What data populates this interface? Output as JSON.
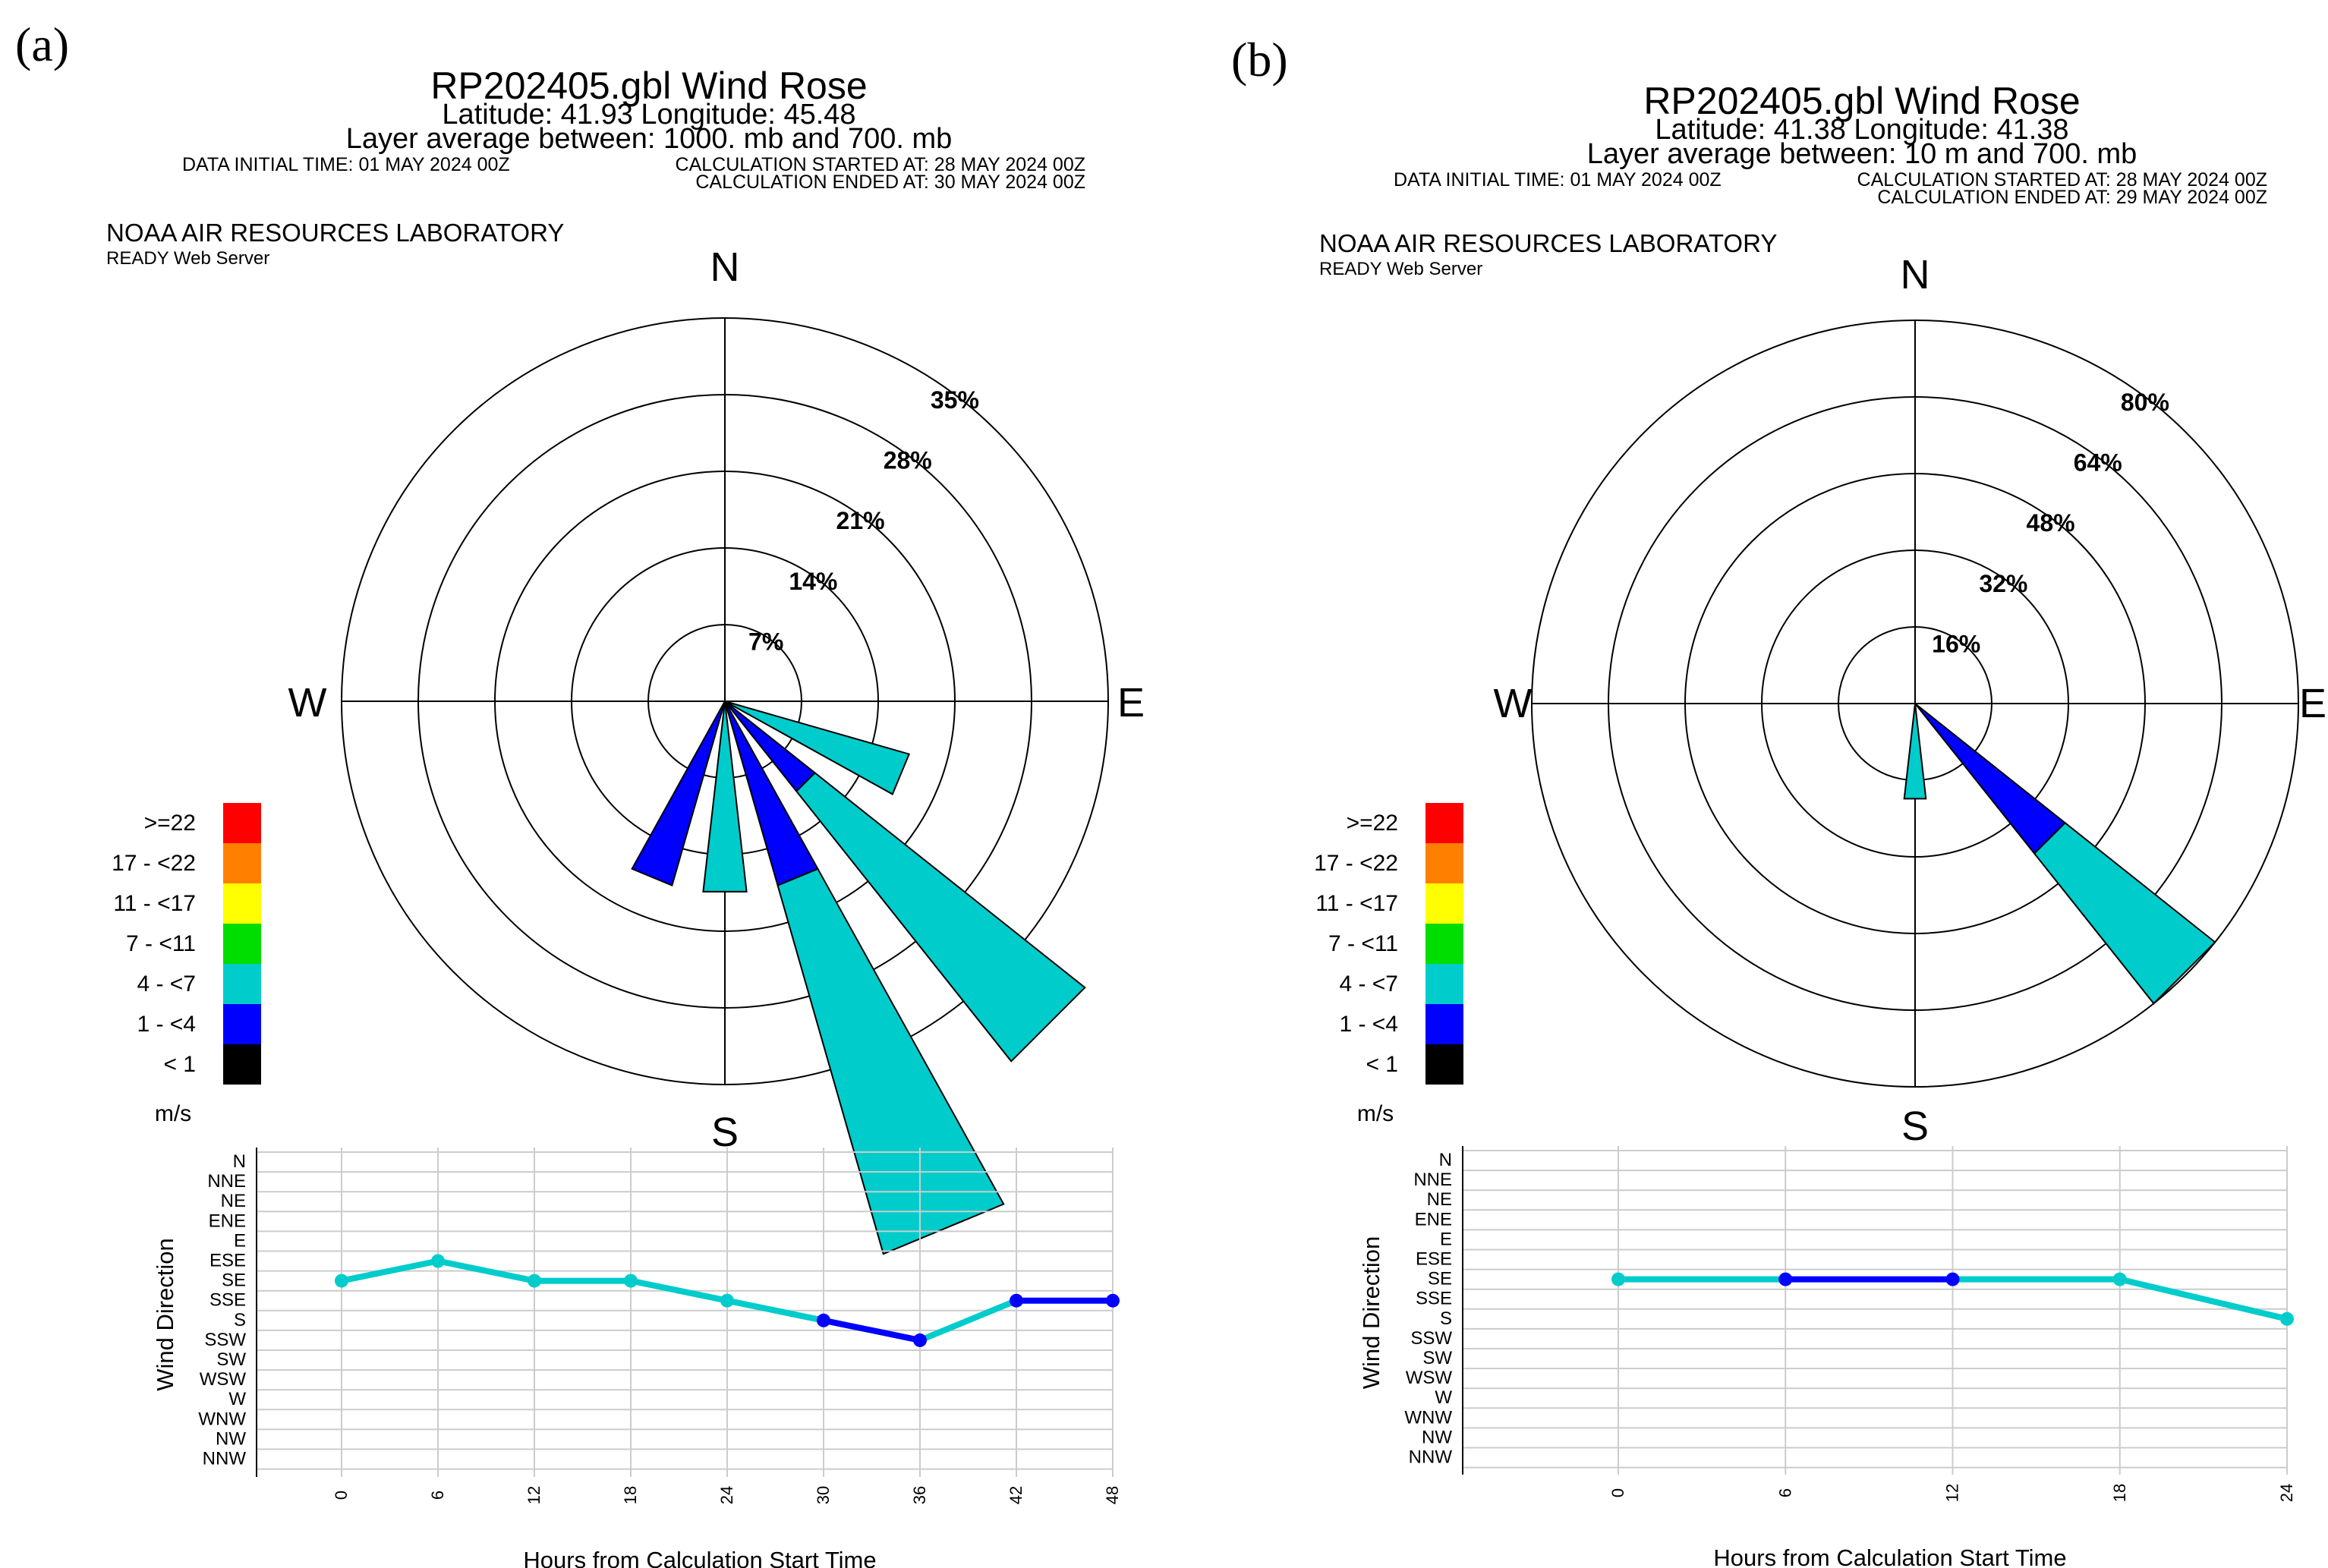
{
  "panels": [
    {
      "letter": "(a)",
      "title": "RP202405.gbl Wind Rose",
      "location": "Latitude: 41.93 Longitude:  45.48",
      "layer": "Layer average between: 1000. mb    and  700. mb",
      "data_initial": "DATA INITIAL TIME: 01 MAY 2024 00Z",
      "calc_started": "CALCULATION STARTED AT: 28 MAY 2024 00Z",
      "calc_ended": "CALCULATION ENDED AT: 30 MAY 2024 00Z",
      "org": "NOAA AIR RESOURCES LABORATORY",
      "server": "READY Web Server",
      "compass": {
        "n": "N",
        "s": "S",
        "e": "E",
        "w": "W"
      },
      "ring_labels": [
        "7%",
        "14%",
        "21%",
        "28%",
        "35%"
      ],
      "legend": {
        "bins": [
          ">=22",
          "17 - <22",
          "11 - <17",
          "7 - <11",
          "4 - <7",
          "1 - <4",
          "< 1"
        ],
        "colors": [
          "#ff0000",
          "#ff8000",
          "#ffff00",
          "#00dd00",
          "#00cccc",
          "#0000ff",
          "#000000"
        ],
        "unit": "m/s"
      },
      "time_axis_label": "Hours from Calculation Start Time",
      "direction_axis_label": "Wind Direction"
    },
    {
      "letter": "(b)",
      "title": "RP202405.gbl Wind Rose",
      "location": "Latitude: 41.38 Longitude:  41.38",
      "layer": "Layer average between:       10 m  and  700. mb",
      "data_initial": "DATA INITIAL TIME: 01 MAY 2024 00Z",
      "calc_started": "CALCULATION STARTED AT: 28 MAY 2024 00Z",
      "calc_ended": "CALCULATION ENDED AT: 29 MAY 2024 00Z",
      "org": "NOAA AIR RESOURCES LABORATORY",
      "server": "READY Web Server",
      "compass": {
        "n": "N",
        "s": "S",
        "e": "E",
        "w": "W"
      },
      "ring_labels": [
        "16%",
        "32%",
        "48%",
        "64%",
        "80%"
      ],
      "legend": {
        "bins": [
          ">=22",
          "17 - <22",
          "11 - <17",
          "7 - <11",
          "4 - <7",
          "1 - <4",
          "< 1"
        ],
        "colors": [
          "#ff0000",
          "#ff8000",
          "#ffff00",
          "#00dd00",
          "#00cccc",
          "#0000ff",
          "#000000"
        ],
        "unit": "m/s"
      },
      "time_axis_label": "Hours from Calculation Start Time",
      "direction_axis_label": "Wind Direction"
    }
  ],
  "chart_data": [
    {
      "type": "windrose",
      "title": "RP202405.gbl Wind Rose",
      "ring_max_percent": 35,
      "rings_percent": [
        7,
        14,
        21,
        28,
        35
      ],
      "petals": [
        {
          "direction": "ESE",
          "segments": [
            {
              "bin": "4 - <7",
              "percent": 17.5
            }
          ]
        },
        {
          "direction": "SE",
          "segments": [
            {
              "bin": "1 - <4",
              "percent": 10.5
            },
            {
              "bin": "4 - <7",
              "percent": 42
            }
          ]
        },
        {
          "direction": "SSE",
          "segments": [
            {
              "bin": "1 - <4",
              "percent": 17.5
            },
            {
              "bin": "4 - <7",
              "percent": 52.5
            }
          ]
        },
        {
          "direction": "S",
          "segments": [
            {
              "bin": "4 - <7",
              "percent": 17.5
            }
          ]
        },
        {
          "direction": "SSW",
          "segments": [
            {
              "bin": "1 - <4",
              "percent": 17.5
            }
          ]
        }
      ]
    },
    {
      "type": "line",
      "xlabel": "Hours from Calculation Start Time",
      "ylabel": "Wind Direction",
      "x": [
        0,
        6,
        12,
        18,
        24,
        30,
        36,
        42,
        48
      ],
      "y": [
        "SE",
        "ESE",
        "SE",
        "SE",
        "SSE",
        "S",
        "SSW",
        "SSE",
        "SSE"
      ],
      "segment_speed_bins": [
        "4 - <7",
        "4 - <7",
        "4 - <7",
        "4 - <7",
        "4 - <7",
        "1 - <4",
        "4 - <7",
        "1 - <4"
      ],
      "y_categories": [
        "N",
        "NNE",
        "NE",
        "ENE",
        "E",
        "ESE",
        "SE",
        "SSE",
        "S",
        "SSW",
        "SW",
        "WSW",
        "W",
        "WNW",
        "NW",
        "NNW"
      ]
    },
    {
      "type": "windrose",
      "title": "RP202405.gbl Wind Rose",
      "ring_max_percent": 80,
      "rings_percent": [
        16,
        32,
        48,
        64,
        80
      ],
      "petals": [
        {
          "direction": "SE",
          "segments": [
            {
              "bin": "1 - <4",
              "percent": 40
            },
            {
              "bin": "4 - <7",
              "percent": 80
            }
          ]
        },
        {
          "direction": "S",
          "segments": [
            {
              "bin": "4 - <7",
              "percent": 20
            }
          ]
        }
      ]
    },
    {
      "type": "line",
      "xlabel": "Hours from Calculation Start Time",
      "ylabel": "Wind Direction",
      "x": [
        0,
        6,
        12,
        18,
        24
      ],
      "y": [
        "SE",
        "SE",
        "SE",
        "SE",
        "S"
      ],
      "segment_speed_bins": [
        "4 - <7",
        "1 - <4",
        "4 - <7",
        "4 - <7"
      ],
      "y_categories": [
        "N",
        "NNE",
        "NE",
        "ENE",
        "E",
        "ESE",
        "SE",
        "SSE",
        "S",
        "SSW",
        "SW",
        "WSW",
        "W",
        "WNW",
        "NW",
        "NNW"
      ]
    }
  ]
}
